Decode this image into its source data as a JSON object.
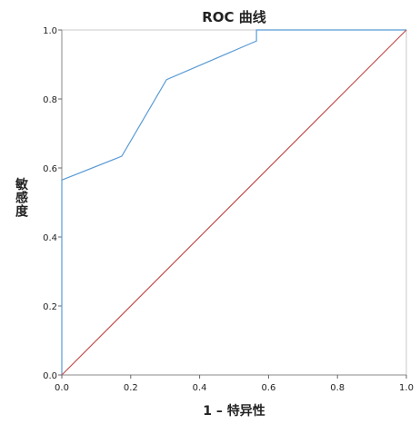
{
  "chart_data": {
    "type": "line",
    "title": "ROC 曲线",
    "xlabel": "1 – 特异性",
    "ylabel": "敏感度",
    "xlim": [
      0.0,
      1.0
    ],
    "ylim": [
      0.0,
      1.0
    ],
    "x_ticks": [
      "0.0",
      "0.2",
      "0.4",
      "0.6",
      "0.8",
      "1.0"
    ],
    "y_ticks": [
      "0.0",
      "0.2",
      "0.4",
      "0.6",
      "0.8",
      "1.0"
    ],
    "grid": true,
    "series": [
      {
        "color": "#5B9BD5",
        "points": [
          {
            "x": 0.0,
            "y": 0.0
          },
          {
            "x": 0.0,
            "y": 0.565
          },
          {
            "x": 0.174,
            "y": 0.634
          },
          {
            "x": 0.304,
            "y": 0.856
          },
          {
            "x": 0.565,
            "y": 0.968
          },
          {
            "x": 0.565,
            "y": 1.0
          },
          {
            "x": 1.0,
            "y": 1.0
          }
        ]
      },
      {
        "color": "#C0504D",
        "points": [
          {
            "x": 0.0,
            "y": 0.0
          },
          {
            "x": 1.0,
            "y": 1.0
          }
        ]
      }
    ]
  }
}
